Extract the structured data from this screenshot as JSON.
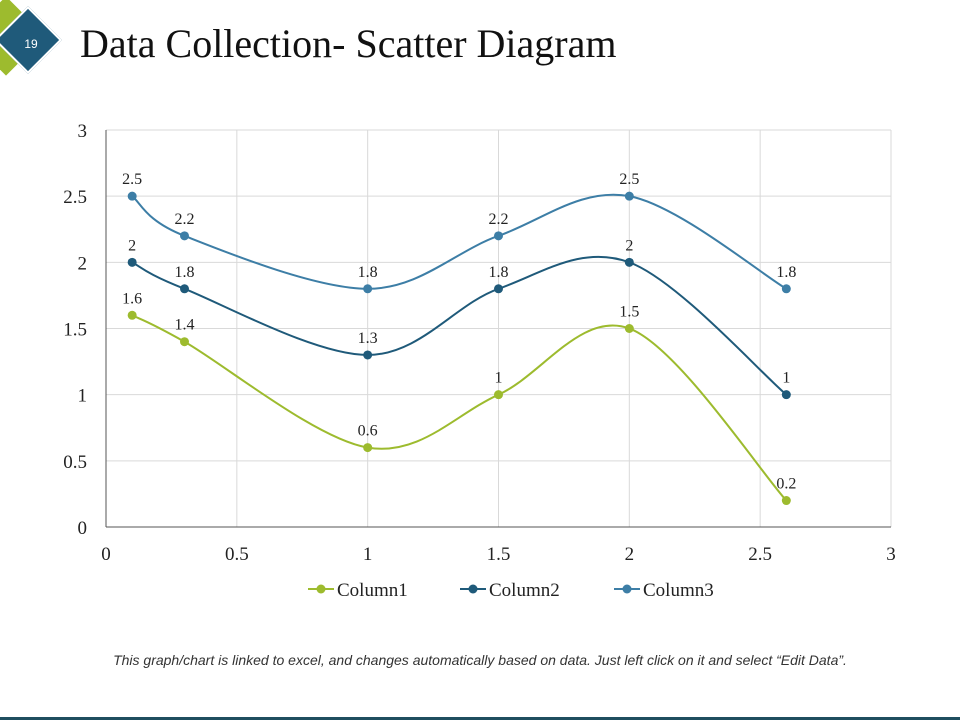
{
  "slide": {
    "number": "19",
    "title": "Data Collection- Scatter Diagram",
    "footnote": "This graph/chart is linked to excel, and changes automatically based on data. Just left click on it and select “Edit Data”."
  },
  "colors": {
    "accent_green": "#9dbb2e",
    "accent_blue": "#1f5a7a",
    "grid": "#d9d9d9",
    "axis": "#555555"
  },
  "chart_data": {
    "type": "scatter",
    "title": "",
    "xlabel": "",
    "ylabel": "",
    "xlim": [
      0,
      3
    ],
    "ylim": [
      0,
      3
    ],
    "x_ticks": [
      "0",
      "0.5",
      "1",
      "1.5",
      "2",
      "2.5",
      "3"
    ],
    "y_ticks": [
      "0",
      "0.5",
      "1",
      "1.5",
      "2",
      "2.5",
      "3"
    ],
    "grid": true,
    "smooth_lines": true,
    "legend_position": "bottom",
    "x": [
      0.1,
      0.3,
      1,
      1.5,
      2,
      2.6
    ],
    "series": [
      {
        "name": "Column1",
        "color": "#9dbb2e",
        "values": [
          1.6,
          1.4,
          0.6,
          1,
          1.5,
          0.2
        ],
        "labels": [
          "1.6",
          "1.4",
          "0.6",
          "1",
          "1.5",
          "0.2"
        ]
      },
      {
        "name": "Column2",
        "color": "#1f5a7a",
        "values": [
          2,
          1.8,
          1.3,
          1.8,
          2,
          1
        ],
        "labels": [
          "2",
          "1.8",
          "1.3",
          "1.8",
          "2",
          "1"
        ]
      },
      {
        "name": "Column3",
        "color": "#3d7ea6",
        "values": [
          2.5,
          2.2,
          1.8,
          2.2,
          2.5,
          1.8
        ],
        "labels": [
          "2.5",
          "2.2",
          "1.8",
          "2.2",
          "2.5",
          "1.8"
        ]
      }
    ]
  }
}
